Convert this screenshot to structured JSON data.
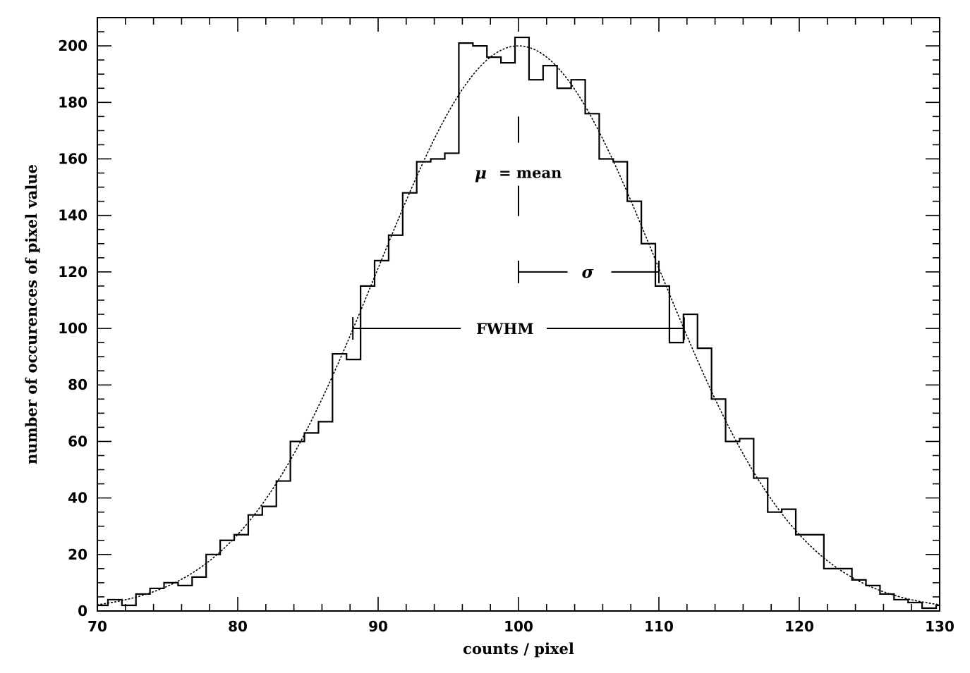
{
  "chart_data": {
    "type": "histogram",
    "xlabel": "counts / pixel",
    "ylabel": "number of occurences of pixel value",
    "xlim": [
      70,
      130
    ],
    "ylim": [
      0,
      210
    ],
    "x_ticks": [
      70,
      80,
      90,
      100,
      110,
      120,
      130
    ],
    "y_ticks": [
      0,
      20,
      40,
      60,
      80,
      100,
      120,
      140,
      160,
      180,
      200
    ],
    "x_minor_step": 2,
    "y_minor_step": 5,
    "grid": false,
    "bin_width": 1,
    "bin_edges_start": 69.75,
    "histogram_values": [
      2,
      4,
      2,
      6,
      8,
      10,
      9,
      12,
      20,
      25,
      27,
      34,
      37,
      46,
      60,
      63,
      67,
      91,
      89,
      115,
      124,
      133,
      148,
      159,
      160,
      162,
      201,
      200,
      196,
      194,
      203,
      188,
      193,
      185,
      188,
      176,
      160,
      159,
      145,
      130,
      115,
      95,
      105,
      93,
      75,
      60,
      61,
      47,
      35,
      36,
      27,
      27,
      15,
      15,
      11,
      9,
      6,
      4,
      3,
      1,
      2
    ],
    "gaussian_fit": {
      "mean": 100,
      "sigma": 10,
      "amplitude": 200
    },
    "annotations": {
      "mean": {
        "symbol": "μ",
        "text": "= mean",
        "x": 100,
        "y_range": [
          116,
          175
        ],
        "label_y": 155
      },
      "sigma": {
        "symbol": "σ",
        "x_range": [
          100,
          110
        ],
        "y": 120
      },
      "fwhm": {
        "text": "FWHM",
        "x_range": [
          88.2,
          111.8
        ],
        "y": 100
      }
    }
  }
}
